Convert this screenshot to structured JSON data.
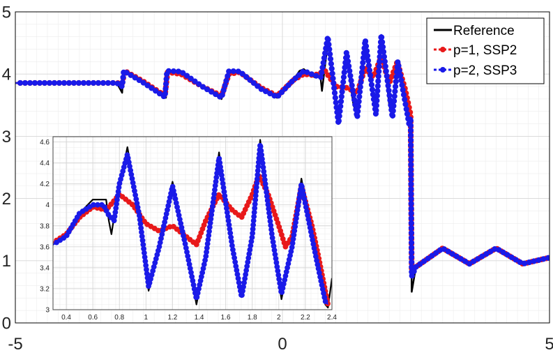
{
  "chart_data": [
    {
      "type": "line",
      "title": "",
      "xlabel": "",
      "ylabel": "",
      "xlim": [
        -5,
        5
      ],
      "ylim": [
        0,
        5
      ],
      "xticks": [
        "-5",
        "0",
        "5"
      ],
      "yticks": [
        "0",
        "1",
        "2",
        "3",
        "4",
        "5"
      ],
      "grid": true,
      "legend_position": "top-right",
      "series": [
        {
          "name": "Reference",
          "color": "#000000",
          "marker": "none",
          "points": [
            [
              -5,
              3.857
            ],
            [
              -3.5,
              3.857
            ],
            [
              -3.1,
              3.857
            ],
            [
              -3.0,
              3.7
            ],
            [
              -2.98,
              4.05
            ],
            [
              -2.6,
              3.85
            ],
            [
              -2.2,
              3.62
            ],
            [
              -2.18,
              3.62
            ],
            [
              -2.15,
              4.05
            ],
            [
              -1.9,
              4.05
            ],
            [
              -1.5,
              3.8
            ],
            [
              -1.14,
              3.6
            ],
            [
              -1.0,
              4.05
            ],
            [
              -0.8,
              4.05
            ],
            [
              -0.4,
              3.75
            ],
            [
              -0.1,
              3.62
            ],
            [
              0.2,
              3.9
            ],
            [
              0.32,
              4.05
            ],
            [
              0.4,
              4.08
            ],
            [
              0.5,
              4.0
            ],
            [
              0.6,
              3.95
            ],
            [
              0.71,
              3.97
            ],
            [
              0.74,
              3.73
            ],
            [
              0.85,
              4.5
            ],
            [
              0.96,
              3.8
            ],
            [
              1.05,
              3.2
            ],
            [
              1.2,
              4.3
            ],
            [
              1.33,
              3.5
            ],
            [
              1.4,
              3.35
            ],
            [
              1.55,
              4.45
            ],
            [
              1.7,
              3.6
            ],
            [
              1.75,
              3.4
            ],
            [
              1.86,
              4.6
            ],
            [
              2.0,
              3.5
            ],
            [
              2.06,
              3.3
            ],
            [
              2.16,
              4.2
            ],
            [
              2.3,
              3.6
            ],
            [
              2.37,
              3.2
            ],
            [
              2.4,
              3.35
            ],
            [
              2.42,
              0.5
            ],
            [
              2.5,
              0.9
            ],
            [
              3.0,
              1.2
            ],
            [
              3.5,
              0.95
            ],
            [
              4.0,
              1.2
            ],
            [
              4.5,
              0.95
            ],
            [
              5,
              1.05
            ]
          ]
        },
        {
          "name": "p=1, SSP2",
          "color": "#e8191a",
          "marker": "circle",
          "points": [
            [
              -5,
              3.857
            ],
            [
              -3.1,
              3.857
            ],
            [
              -3.0,
              3.85
            ],
            [
              -2.95,
              4.05
            ],
            [
              -2.6,
              3.88
            ],
            [
              -2.2,
              3.65
            ],
            [
              -2.15,
              4.03
            ],
            [
              -1.9,
              4.0
            ],
            [
              -1.5,
              3.8
            ],
            [
              -1.14,
              3.65
            ],
            [
              -1.0,
              4.0
            ],
            [
              -0.8,
              4.03
            ],
            [
              -0.4,
              3.78
            ],
            [
              -0.1,
              3.65
            ],
            [
              0.2,
              3.9
            ],
            [
              0.4,
              4.0
            ],
            [
              0.6,
              3.98
            ],
            [
              0.8,
              4.05
            ],
            [
              1.0,
              3.8
            ],
            [
              1.2,
              3.78
            ],
            [
              1.4,
              3.7
            ],
            [
              1.55,
              4.1
            ],
            [
              1.7,
              3.95
            ],
            [
              1.85,
              4.28
            ],
            [
              2.0,
              3.85
            ],
            [
              2.15,
              4.2
            ],
            [
              2.3,
              3.75
            ],
            [
              2.4,
              3.35
            ],
            [
              2.42,
              0.85
            ],
            [
              2.5,
              0.9
            ],
            [
              3.0,
              1.2
            ],
            [
              3.5,
              0.95
            ],
            [
              4.0,
              1.2
            ],
            [
              4.5,
              0.95
            ],
            [
              5,
              1.05
            ]
          ]
        },
        {
          "name": "p=2, SSP3",
          "color": "#1a1ae8",
          "marker": "circle",
          "points": [
            [
              -5,
              3.857
            ],
            [
              -3.1,
              3.857
            ],
            [
              -3.0,
              3.8
            ],
            [
              -2.97,
              4.05
            ],
            [
              -2.6,
              3.86
            ],
            [
              -2.2,
              3.63
            ],
            [
              -2.16,
              4.05
            ],
            [
              -1.9,
              4.04
            ],
            [
              -1.5,
              3.8
            ],
            [
              -1.14,
              3.62
            ],
            [
              -1.0,
              4.05
            ],
            [
              -0.8,
              4.04
            ],
            [
              -0.4,
              3.76
            ],
            [
              -0.1,
              3.63
            ],
            [
              0.2,
              3.9
            ],
            [
              0.4,
              4.05
            ],
            [
              0.6,
              3.98
            ],
            [
              0.72,
              3.95
            ],
            [
              0.85,
              4.6
            ],
            [
              1.05,
              3.2
            ],
            [
              1.2,
              4.35
            ],
            [
              1.4,
              3.3
            ],
            [
              1.55,
              4.55
            ],
            [
              1.75,
              3.35
            ],
            [
              1.85,
              4.63
            ],
            [
              2.06,
              3.3
            ],
            [
              2.16,
              4.2
            ],
            [
              2.37,
              3.2
            ],
            [
              2.4,
              3.3
            ],
            [
              2.42,
              0.75
            ],
            [
              2.5,
              0.9
            ],
            [
              3.0,
              1.2
            ],
            [
              3.5,
              0.95
            ],
            [
              4.0,
              1.2
            ],
            [
              4.5,
              0.95
            ],
            [
              5,
              1.05
            ]
          ]
        }
      ]
    },
    {
      "type": "line",
      "title": "",
      "xlabel": "",
      "ylabel": "",
      "xlim": [
        0.3,
        2.4
      ],
      "ylim": [
        3,
        4.65
      ],
      "xticks": [
        "0.4",
        "0.6",
        "0.8",
        "1",
        "1.2",
        "1.4",
        "1.6",
        "1.8",
        "2",
        "2.2",
        "2.4"
      ],
      "yticks": [
        "3",
        "3.2",
        "3.4",
        "3.6",
        "3.8",
        "4",
        "4.2",
        "4.4",
        "4.6"
      ],
      "grid": true,
      "legend_position": "none",
      "series": [
        {
          "color": "#000000",
          "marker": "none",
          "points": [
            [
              0.3,
              3.62
            ],
            [
              0.4,
              3.7
            ],
            [
              0.5,
              3.92
            ],
            [
              0.6,
              4.05
            ],
            [
              0.7,
              4.05
            ],
            [
              0.72,
              3.85
            ],
            [
              0.74,
              3.72
            ],
            [
              0.78,
              4.05
            ],
            [
              0.86,
              4.55
            ],
            [
              0.95,
              3.9
            ],
            [
              1.02,
              3.18
            ],
            [
              1.1,
              3.6
            ],
            [
              1.2,
              4.22
            ],
            [
              1.3,
              3.6
            ],
            [
              1.38,
              3.05
            ],
            [
              1.45,
              3.5
            ],
            [
              1.55,
              4.5
            ],
            [
              1.65,
              3.6
            ],
            [
              1.72,
              3.12
            ],
            [
              1.8,
              3.7
            ],
            [
              1.86,
              4.62
            ],
            [
              1.95,
              3.7
            ],
            [
              2.02,
              3.1
            ],
            [
              2.1,
              3.6
            ],
            [
              2.17,
              4.25
            ],
            [
              2.28,
              3.5
            ],
            [
              2.35,
              3.05
            ],
            [
              2.37,
              3.02
            ],
            [
              2.4,
              3.3
            ]
          ]
        },
        {
          "color": "#e8191a",
          "marker": "circle",
          "points": [
            [
              0.3,
              3.64
            ],
            [
              0.4,
              3.72
            ],
            [
              0.5,
              3.88
            ],
            [
              0.6,
              3.98
            ],
            [
              0.7,
              3.95
            ],
            [
              0.8,
              4.1
            ],
            [
              0.9,
              4.0
            ],
            [
              1.0,
              3.82
            ],
            [
              1.1,
              3.75
            ],
            [
              1.2,
              3.8
            ],
            [
              1.3,
              3.7
            ],
            [
              1.38,
              3.62
            ],
            [
              1.45,
              3.85
            ],
            [
              1.55,
              4.1
            ],
            [
              1.65,
              3.95
            ],
            [
              1.72,
              3.88
            ],
            [
              1.8,
              4.1
            ],
            [
              1.85,
              4.28
            ],
            [
              1.92,
              4.1
            ],
            [
              2.0,
              3.8
            ],
            [
              2.05,
              3.6
            ],
            [
              2.1,
              3.7
            ],
            [
              2.17,
              4.18
            ],
            [
              2.25,
              3.8
            ],
            [
              2.3,
              3.5
            ],
            [
              2.37,
              3.05
            ]
          ]
        },
        {
          "color": "#1a1ae8",
          "marker": "circle",
          "points": [
            [
              0.3,
              3.62
            ],
            [
              0.4,
              3.7
            ],
            [
              0.5,
              3.92
            ],
            [
              0.6,
              4.0
            ],
            [
              0.68,
              4.0
            ],
            [
              0.72,
              3.9
            ],
            [
              0.76,
              3.85
            ],
            [
              0.8,
              4.2
            ],
            [
              0.86,
              4.48
            ],
            [
              0.95,
              3.9
            ],
            [
              1.02,
              3.22
            ],
            [
              1.1,
              3.6
            ],
            [
              1.2,
              4.18
            ],
            [
              1.3,
              3.6
            ],
            [
              1.38,
              3.1
            ],
            [
              1.45,
              3.5
            ],
            [
              1.55,
              4.45
            ],
            [
              1.65,
              3.6
            ],
            [
              1.72,
              3.12
            ],
            [
              1.8,
              3.7
            ],
            [
              1.86,
              4.58
            ],
            [
              1.95,
              3.7
            ],
            [
              2.02,
              3.15
            ],
            [
              2.1,
              3.6
            ],
            [
              2.17,
              4.2
            ],
            [
              2.28,
              3.5
            ],
            [
              2.35,
              3.08
            ],
            [
              2.37,
              3.05
            ]
          ]
        }
      ]
    }
  ]
}
